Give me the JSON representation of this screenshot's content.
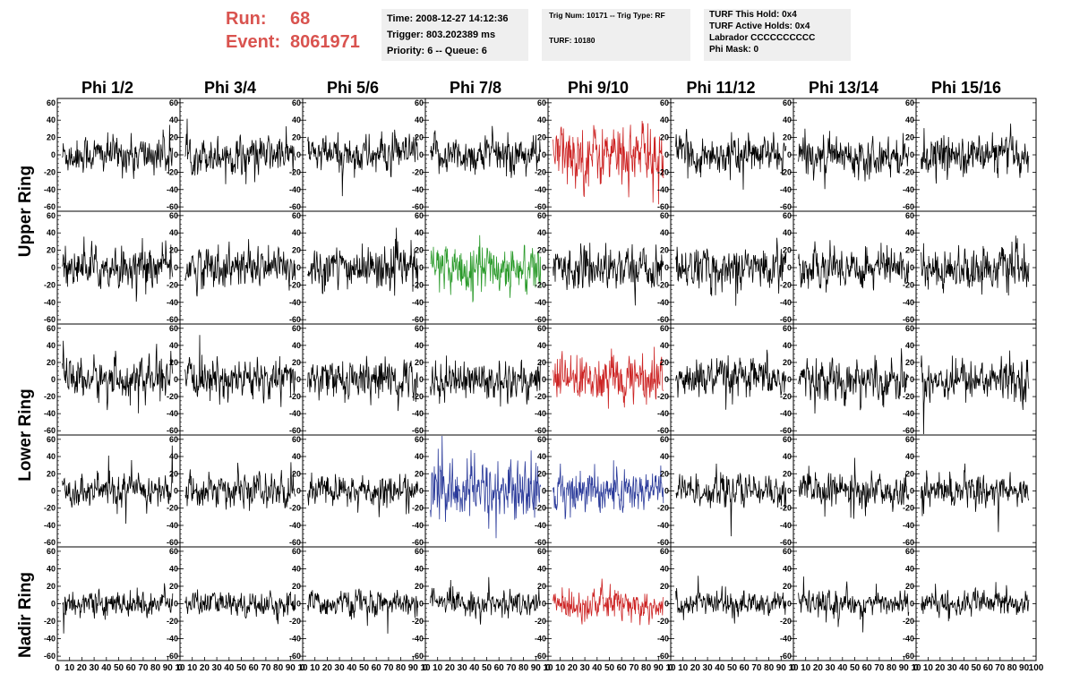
{
  "header": {
    "run_label": "Run:",
    "run_value": "68",
    "event_label": "Event:",
    "event_value": "8061971",
    "time": "Time: 2008-12-27 14:12:36",
    "trigger": "Trigger: 803.202389 ms",
    "priority": "Priority: 6 -- Queue: 6",
    "trig_num": "Trig Num: 10171 -- Trig Type: RF",
    "turf": "TURF: 10180",
    "turf_this_hold": "TURF This Hold: 0x4",
    "turf_active_holds": "TURF Active Holds: 0x4",
    "labrador": "Labrador CCCCCCCCCC",
    "phi_mask": "Phi Mask: 0"
  },
  "chart_data": {
    "type": "line",
    "columns": [
      "Phi 1/2",
      "Phi 3/4",
      "Phi 5/6",
      "Phi 7/8",
      "Phi 9/10",
      "Phi 11/12",
      "Phi 13/14",
      "Phi 15/16"
    ],
    "row_groups": [
      "Upper Ring",
      "Lower Ring",
      "Nadir Ring"
    ],
    "rows": 5,
    "ylim": [
      -65,
      65
    ],
    "yticks": [
      -60,
      -40,
      -20,
      0,
      20,
      40,
      60
    ],
    "xlim": [
      0,
      100
    ],
    "xticks": [
      0,
      10,
      20,
      30,
      40,
      50,
      60,
      70,
      80,
      90,
      100
    ],
    "x_tick_labels_last_column": [
      "0",
      "10",
      "20",
      "30",
      "40",
      "50",
      "60",
      "70",
      "80",
      "90",
      "100"
    ],
    "x_tick_labels_other_columns": [
      "0",
      "10",
      "20",
      "30",
      "40",
      "50",
      "60",
      "70",
      "80",
      "90",
      "10"
    ],
    "samples_per_trace": 256,
    "default_color": "#000000",
    "highlight": [
      {
        "row": 0,
        "col": 4,
        "color": "#cc2222",
        "amplitude": 30
      },
      {
        "row": 1,
        "col": 3,
        "color": "#2a9a2a",
        "amplitude": 24
      },
      {
        "row": 2,
        "col": 4,
        "color": "#cc2222",
        "amplitude": 24
      },
      {
        "row": 3,
        "col": 3,
        "color": "#2a3a9a",
        "amplitude": 30
      },
      {
        "row": 3,
        "col": 4,
        "color": "#2a3a9a",
        "amplitude": 22
      },
      {
        "row": 4,
        "col": 4,
        "color": "#cc2222",
        "amplitude": 16
      }
    ],
    "row_amplitude": [
      18,
      20,
      20,
      16,
      12
    ]
  }
}
